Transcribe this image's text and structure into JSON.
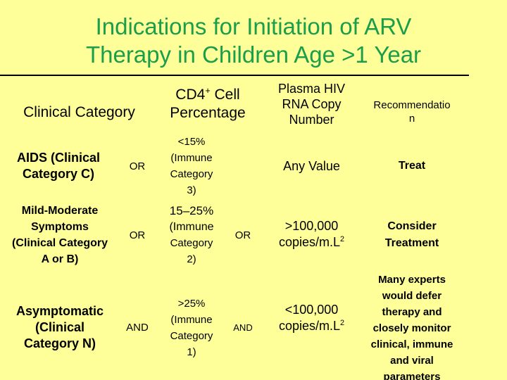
{
  "title": {
    "line1": "Indications for Initiation of ARV",
    "line2": "Therapy in Children Age >1 Year"
  },
  "header": {
    "clinical_category": "Clinical Category",
    "cd4_line1": "CD4",
    "cd4_sup": "+",
    "cd4_line1_tail": " Cell",
    "cd4_line2": "Percentage",
    "rna_line1": "Plasma HIV",
    "rna_line2": "RNA Copy",
    "rna_line3": "Number",
    "rec_line1": "Recommendatio",
    "rec_line2": "n"
  },
  "rows": [
    {
      "category_line1": "AIDS (Clinical",
      "category_line2": "Category C)",
      "op1": "OR",
      "cd4_line1": "<15%",
      "cd4_line2": "(Immune",
      "cd4_line3": "Category",
      "cd4_line4": "3)",
      "op2": "",
      "rna": "Any Value",
      "recommendation": "Treat"
    },
    {
      "category_line1": "Mild-Moderate",
      "category_line2": "Symptoms",
      "category_line3": "(Clinical Category",
      "category_line4": "A or B)",
      "op1": "OR",
      "cd4_line1": "15–25%",
      "cd4_line2": "(Immune",
      "cd4_line3": "Category",
      "cd4_line4": "2)",
      "op2": "OR",
      "rna_line1": ">100,000",
      "rna_line2": "copies/m.L",
      "rna_sup": "2",
      "rec_line1": "Consider",
      "rec_line2": "Treatment"
    },
    {
      "category_line1": "Asymptomatic",
      "category_line2": "(Clinical",
      "category_line3": "Category N)",
      "op1": "AND",
      "cd4_line1": ">25%",
      "cd4_line2": "(Immune",
      "cd4_line3": "Category",
      "cd4_line4": "1)",
      "op2": "AND",
      "rna_line1": "<100,000",
      "rna_line2": "copies/m.L",
      "rna_sup": "2",
      "rec_line1": "Many experts",
      "rec_line2": "would defer",
      "rec_line3": "therapy and",
      "rec_line4": "closely monitor",
      "rec_line5": "clinical, immune",
      "rec_line6": "and viral",
      "rec_line7": "parameters"
    }
  ]
}
